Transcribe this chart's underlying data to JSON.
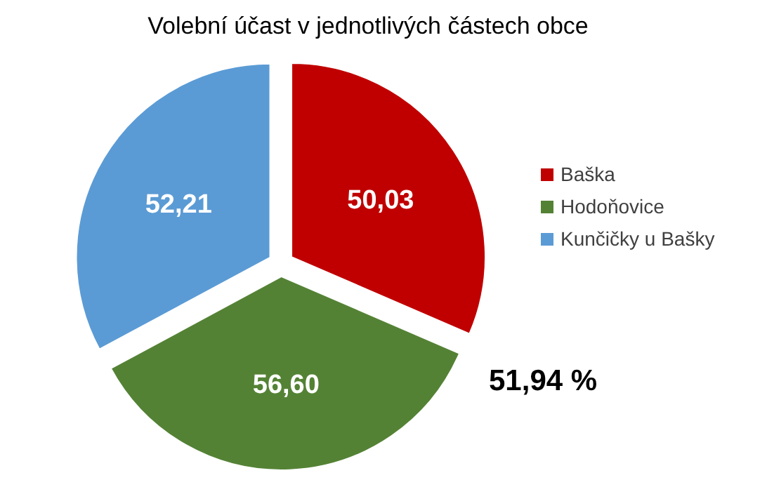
{
  "chart_data": {
    "type": "pie",
    "title": "Volební účast v jednotlivých částech obce",
    "categories": [
      "Baška",
      "Hodoňovice",
      "Kunčičky u Bašky"
    ],
    "values": [
      50.03,
      56.6,
      52.21
    ],
    "value_labels": [
      "50,03",
      "56,60",
      "52,21"
    ],
    "colors": [
      "#c00000",
      "#548235",
      "#5b9bd5"
    ],
    "legend": "right",
    "annotations": [
      "51,94 %"
    ]
  }
}
